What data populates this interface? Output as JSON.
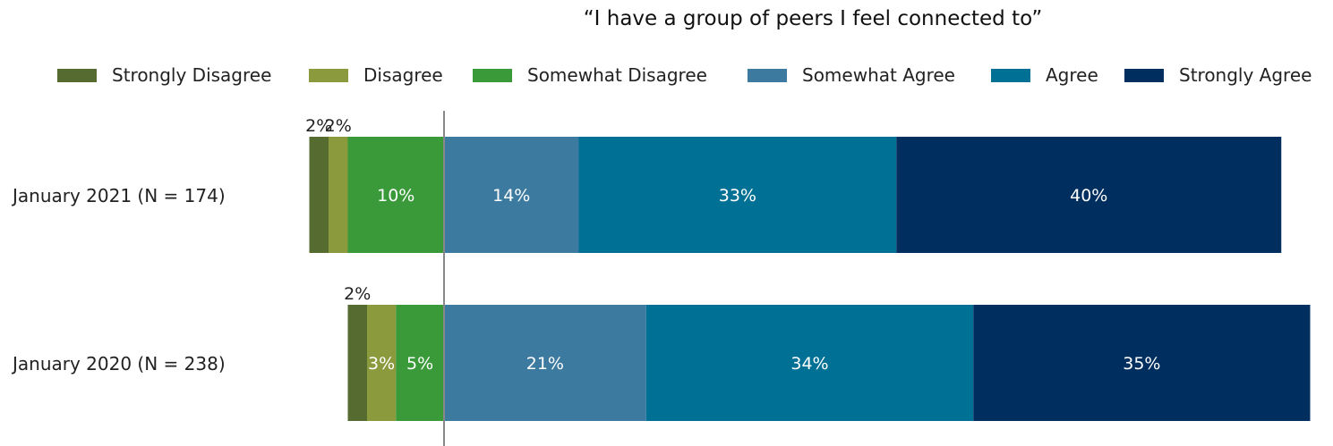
{
  "chart_data": {
    "type": "bar",
    "orientation": "horizontal",
    "stacked": "diverging",
    "title": "“I have a group of peers I feel connected to”",
    "categories": [
      "January 2021 (N = 174)",
      "January 2020 (N = 238)"
    ],
    "legend_position": "top",
    "grid": false,
    "series": [
      {
        "name": "Strongly Disagree",
        "color": "#556B2F",
        "values": [
          2,
          2
        ],
        "labels": [
          "2%",
          "2%"
        ]
      },
      {
        "name": "Disagree",
        "color": "#8A9A3C",
        "values": [
          2,
          3
        ],
        "labels": [
          "2%",
          "3%"
        ]
      },
      {
        "name": "Somewhat Disagree",
        "color": "#3A9A3A",
        "values": [
          10,
          5
        ],
        "labels": [
          "10%",
          "5%"
        ]
      },
      {
        "name": "Somewhat Agree",
        "color": "#3C7AA0",
        "values": [
          14,
          21
        ],
        "labels": [
          "14%",
          "21%"
        ]
      },
      {
        "name": "Agree",
        "color": "#007094",
        "values": [
          33,
          34
        ],
        "labels": [
          "33%",
          "34%"
        ]
      },
      {
        "name": "Strongly Agree",
        "color": "#002F5F",
        "values": [
          40,
          35
        ],
        "labels": [
          "40%",
          "35%"
        ]
      }
    ]
  }
}
